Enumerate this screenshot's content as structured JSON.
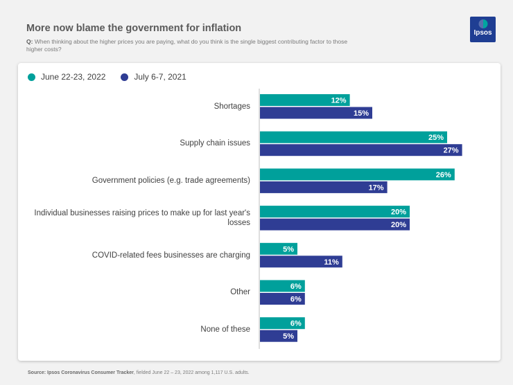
{
  "header": {
    "title": "More now blame the government for inflation",
    "question_prefix": "Q:",
    "question_text": "When thinking about the higher prices you are paying, what do you think is the single biggest contributing factor to those higher costs?"
  },
  "logo": {
    "text": "Ipsos",
    "bg_color": "#1f3e93",
    "accent_color": "#00a5a0"
  },
  "chart_data": {
    "type": "bar",
    "orientation": "horizontal",
    "title": "More now blame the government for inflation",
    "xlabel": "",
    "ylabel": "",
    "xlim": [
      0,
      30
    ],
    "grid": false,
    "legend_position": "top-left",
    "categories": [
      "Shortages",
      "Supply chain issues",
      "Government policies (e.g. trade agreements)",
      "Individual businesses raising prices to make up for last year's losses",
      "COVID-related fees businesses are charging",
      "Other",
      "None of these"
    ],
    "series": [
      {
        "name": "June 22-23, 2022",
        "color": "#00a09b",
        "values": [
          12,
          25,
          26,
          20,
          5,
          6,
          6
        ]
      },
      {
        "name": "July 6-7, 2021",
        "color": "#2f3d94",
        "values": [
          15,
          27,
          17,
          20,
          11,
          6,
          5
        ]
      }
    ],
    "value_suffix": "%"
  },
  "footer": {
    "source_prefix": "Source:",
    "source_name": "Ipsos Coronavirus Consumer Tracker",
    "source_rest": ", fielded June 22 – 23, 2022 among 1,117 U.S. adults."
  }
}
